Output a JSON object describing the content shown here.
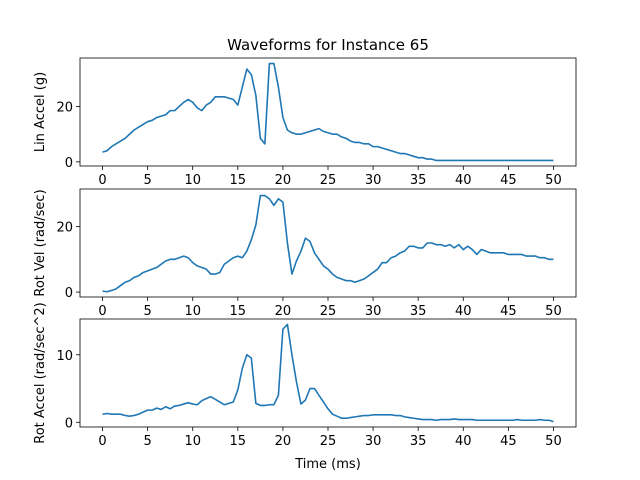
{
  "figure": {
    "title": "Waveforms for Instance 65",
    "xlabel": "Time (ms)"
  },
  "chart_data": [
    {
      "type": "line",
      "ylabel": "Lin Accel (g)",
      "color": "#1f77b4",
      "xlim": [
        -2.5,
        52.5
      ],
      "ylim": [
        -1.5,
        37.5
      ],
      "xticks": [
        0,
        5,
        10,
        15,
        20,
        25,
        30,
        35,
        40,
        45,
        50
      ],
      "yticks": [
        0,
        20
      ],
      "series": [
        {
          "x": [
            0,
            0.5,
            1,
            1.5,
            2,
            2.5,
            3,
            3.5,
            4,
            4.5,
            5,
            5.5,
            6,
            6.5,
            7,
            7.5,
            8,
            8.5,
            9,
            9.5,
            10,
            10.5,
            11,
            11.5,
            12,
            12.5,
            13,
            13.5,
            14,
            14.5,
            15,
            15.5,
            16,
            16.5,
            17,
            17.5,
            18,
            18.5,
            19,
            19.5,
            20,
            20.5,
            21,
            21.5,
            22,
            22.5,
            23,
            23.5,
            24,
            24.5,
            25,
            25.5,
            26,
            26.5,
            27,
            27.5,
            28,
            28.5,
            29,
            29.5,
            30,
            30.5,
            31,
            31.5,
            32,
            32.5,
            33,
            33.5,
            34,
            34.5,
            35,
            35.5,
            36,
            36.5,
            37,
            37.5,
            38,
            38.5,
            39,
            39.5,
            40,
            40.5,
            41,
            41.5,
            42,
            42.5,
            43,
            43.5,
            44,
            44.5,
            45,
            45.5,
            46,
            46.5,
            47,
            47.5,
            48,
            48.5,
            49,
            49.5,
            50
          ],
          "y": [
            3.5,
            4,
            5.5,
            6.5,
            7.5,
            8.5,
            10,
            11.5,
            12.5,
            13.5,
            14.5,
            15,
            16,
            16.5,
            17,
            18.5,
            18.5,
            20,
            21.5,
            22.5,
            21.5,
            19.5,
            18.5,
            20.5,
            21.5,
            23.5,
            23.5,
            23.5,
            23,
            22.5,
            20.5,
            27,
            33.5,
            31.5,
            24,
            8.5,
            6.5,
            35.5,
            35.5,
            27,
            16,
            11.5,
            10.5,
            10,
            10,
            10.5,
            11,
            11.5,
            12,
            11,
            10.5,
            10,
            10,
            9,
            8.5,
            7.5,
            7,
            7,
            6.5,
            6.5,
            5.5,
            5.5,
            5,
            4.5,
            4,
            3.5,
            3,
            3,
            2.5,
            2,
            1.5,
            1.5,
            1,
            1,
            0.5,
            0.5,
            0.5,
            0.5,
            0.5,
            0.5,
            0.5,
            0.5,
            0.5,
            0.5,
            0.5,
            0.5,
            0.5,
            0.5,
            0.5,
            0.5,
            0.5,
            0.5,
            0.5,
            0.5,
            0.5,
            0.5,
            0.5,
            0.5,
            0.5,
            0.5,
            0.5
          ]
        }
      ]
    },
    {
      "type": "line",
      "ylabel": "Rot Vel (rad/sec)",
      "color": "#1f77b4",
      "xlim": [
        -2.5,
        52.5
      ],
      "ylim": [
        -1.5,
        31.5
      ],
      "xticks": [
        0,
        5,
        10,
        15,
        20,
        25,
        30,
        35,
        40,
        45,
        50
      ],
      "yticks": [
        0,
        20
      ],
      "series": [
        {
          "x": [
            0,
            0.5,
            1,
            1.5,
            2,
            2.5,
            3,
            3.5,
            4,
            4.5,
            5,
            5.5,
            6,
            6.5,
            7,
            7.5,
            8,
            8.5,
            9,
            9.5,
            10,
            10.5,
            11,
            11.5,
            12,
            12.5,
            13,
            13.5,
            14,
            14.5,
            15,
            15.5,
            16,
            16.5,
            17,
            17.5,
            18,
            18.5,
            19,
            19.5,
            20,
            20.5,
            21,
            21.5,
            22,
            22.5,
            23,
            23.5,
            24,
            24.5,
            25,
            25.5,
            26,
            26.5,
            27,
            27.5,
            28,
            28.5,
            29,
            29.5,
            30,
            30.5,
            31,
            31.5,
            32,
            32.5,
            33,
            33.5,
            34,
            34.5,
            35,
            35.5,
            36,
            36.5,
            37,
            37.5,
            38,
            38.5,
            39,
            39.5,
            40,
            40.5,
            41,
            41.5,
            42,
            42.5,
            43,
            43.5,
            44,
            44.5,
            45,
            45.5,
            46,
            46.5,
            47,
            47.5,
            48,
            48.5,
            49,
            49.5,
            50
          ],
          "y": [
            0.3,
            0.1,
            0.5,
            1,
            2,
            3,
            3.5,
            4.5,
            5,
            6,
            6.5,
            7,
            7.5,
            8.5,
            9.5,
            10,
            10,
            10.5,
            11,
            10.5,
            9,
            8,
            7.5,
            7,
            5.5,
            5.5,
            6,
            8.5,
            9.5,
            10.5,
            11,
            10.5,
            12.5,
            16,
            20.5,
            29.5,
            29.5,
            28.5,
            26.5,
            28.5,
            27.5,
            15,
            5.5,
            9.5,
            12.5,
            16.5,
            15.5,
            12,
            10,
            8,
            7,
            5.5,
            4.5,
            4,
            3.5,
            3.5,
            3,
            3.5,
            4,
            5,
            6,
            7,
            9,
            9,
            10.5,
            11,
            12,
            12.5,
            14,
            14,
            13.5,
            13.5,
            15,
            15,
            14.5,
            14.5,
            14,
            14.5,
            13.5,
            14.5,
            13,
            14,
            13,
            11.5,
            13,
            12.5,
            12,
            12,
            12,
            12,
            11.5,
            11.5,
            11.5,
            11.5,
            11,
            11,
            11,
            10.5,
            10.5,
            10,
            10
          ]
        }
      ]
    },
    {
      "type": "line",
      "ylabel": "Rot Accel (rad/sec^2)",
      "color": "#1f77b4",
      "xlim": [
        -2.5,
        52.5
      ],
      "ylim": [
        -0.7,
        15.3
      ],
      "xticks": [
        0,
        5,
        10,
        15,
        20,
        25,
        30,
        35,
        40,
        45,
        50
      ],
      "yticks": [
        0,
        10
      ],
      "series": [
        {
          "x": [
            0,
            0.5,
            1,
            1.5,
            2,
            2.5,
            3,
            3.5,
            4,
            4.5,
            5,
            5.5,
            6,
            6.5,
            7,
            7.5,
            8,
            8.5,
            9,
            9.5,
            10,
            10.5,
            11,
            11.5,
            12,
            12.5,
            13,
            13.5,
            14,
            14.5,
            15,
            15.5,
            16,
            16.5,
            17,
            17.5,
            18,
            18.5,
            19,
            19.5,
            20,
            20.5,
            21,
            21.5,
            22,
            22.5,
            23,
            23.5,
            24,
            24.5,
            25,
            25.5,
            26,
            26.5,
            27,
            27.5,
            28,
            28.5,
            29,
            29.5,
            30,
            30.5,
            31,
            31.5,
            32,
            32.5,
            33,
            33.5,
            34,
            34.5,
            35,
            35.5,
            36,
            36.5,
            37,
            37.5,
            38,
            38.5,
            39,
            39.5,
            40,
            40.5,
            41,
            41.5,
            42,
            42.5,
            43,
            43.5,
            44,
            44.5,
            45,
            45.5,
            46,
            46.5,
            47,
            47.5,
            48,
            48.5,
            49,
            49.5,
            50
          ],
          "y": [
            1.2,
            1.3,
            1.2,
            1.2,
            1.2,
            1,
            0.9,
            1,
            1.2,
            1.5,
            1.8,
            1.8,
            2.1,
            1.9,
            2.3,
            2,
            2.4,
            2.5,
            2.7,
            2.9,
            2.7,
            2.6,
            3.2,
            3.5,
            3.8,
            3.4,
            3,
            2.6,
            2.8,
            3,
            4.8,
            8,
            10,
            9.5,
            2.8,
            2.5,
            2.5,
            2.6,
            2.6,
            4,
            13.8,
            14.5,
            10,
            6,
            2.7,
            3.3,
            5,
            5,
            4,
            3,
            2,
            1.2,
            0.9,
            0.6,
            0.6,
            0.7,
            0.8,
            0.9,
            1,
            1,
            1.1,
            1.1,
            1.1,
            1.1,
            1.1,
            1,
            1,
            0.8,
            0.7,
            0.6,
            0.5,
            0.4,
            0.4,
            0.4,
            0.3,
            0.4,
            0.4,
            0.4,
            0.5,
            0.4,
            0.4,
            0.4,
            0.4,
            0.3,
            0.3,
            0.3,
            0.3,
            0.3,
            0.3,
            0.3,
            0.3,
            0.3,
            0.4,
            0.3,
            0.3,
            0.3,
            0.3,
            0.4,
            0.3,
            0.3,
            0.1
          ]
        }
      ]
    }
  ]
}
